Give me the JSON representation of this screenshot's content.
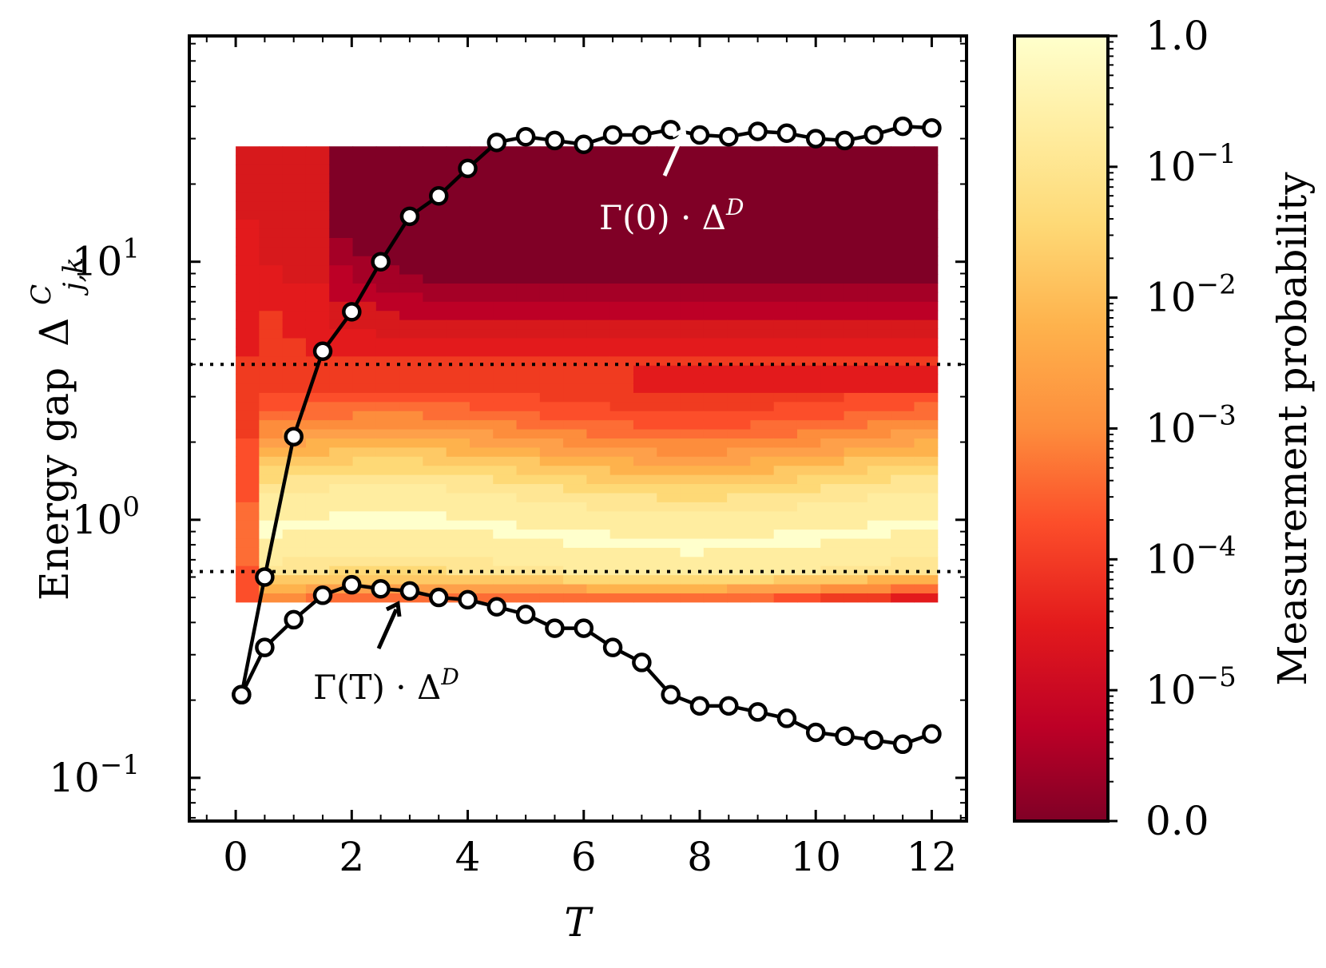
{
  "chart_data": {
    "type": "heatmap",
    "xlabel": "T",
    "ylabel": "Energy gap",
    "ylabel_symbol": "Δ",
    "ylabel_sup": "C",
    "ylabel_sub": "j,k",
    "xlim": [
      -0.8,
      12.6
    ],
    "ylim": [
      0.068,
      75
    ],
    "yscale": "log",
    "xticks": [
      "0",
      "2",
      "4",
      "6",
      "8",
      "10",
      "12"
    ],
    "xtick_values": [
      0,
      2,
      4,
      6,
      8,
      10,
      12
    ],
    "yticks": [
      {
        "value": 0.1,
        "base": "10",
        "exp": "−1"
      },
      {
        "value": 1,
        "base": "10",
        "exp": "0"
      },
      {
        "value": 10,
        "base": "10",
        "exp": "1"
      }
    ],
    "heatmap": {
      "x_range": [
        0,
        12.1
      ],
      "y_range": [
        0.48,
        28
      ],
      "colormap": "YlOrRd_r",
      "description": "Measurement probability of energy gaps versus T"
    },
    "reference_lines": [
      4.0,
      0.63
    ],
    "series": [
      {
        "name": "Γ(0) · Δ^D",
        "x": [
          0.1,
          0.5,
          1,
          1.5,
          2,
          2.5,
          3,
          3.5,
          4,
          4.5,
          5,
          5.5,
          6,
          6.5,
          7,
          7.5,
          8,
          8.5,
          9,
          9.5,
          10,
          10.5,
          11,
          11.5,
          12
        ],
        "values": [
          0.21,
          0.6,
          2.1,
          4.5,
          6.4,
          10.0,
          15.0,
          18.0,
          23.0,
          29.0,
          30.5,
          29.5,
          28.5,
          31.0,
          31.0,
          32.5,
          31.0,
          30.5,
          32.0,
          31.5,
          30.0,
          29.5,
          31.0,
          33.5,
          33.0
        ]
      },
      {
        "name": "Γ(T) · Δ^D",
        "x": [
          0.1,
          0.5,
          1,
          1.5,
          2,
          2.5,
          3,
          3.5,
          4,
          4.5,
          5,
          5.5,
          6,
          6.5,
          7,
          7.5,
          8,
          8.5,
          9,
          9.5,
          10,
          10.5,
          11,
          11.5,
          12
        ],
        "values": [
          0.21,
          0.32,
          0.41,
          0.51,
          0.56,
          0.54,
          0.53,
          0.5,
          0.49,
          0.46,
          0.43,
          0.38,
          0.38,
          0.32,
          0.28,
          0.21,
          0.19,
          0.19,
          0.18,
          0.17,
          0.15,
          0.145,
          0.14,
          0.135,
          0.148
        ]
      }
    ],
    "annotations": [
      {
        "text": "Γ(0) · Δ",
        "sup": "D",
        "target_series": 0
      },
      {
        "text": "Γ(T) · Δ",
        "sup": "D",
        "target_series": 1
      }
    ],
    "colorbar": {
      "label": "Measurement probability",
      "ticks": [
        {
          "text": "1.0",
          "base": "",
          "exp": ""
        },
        {
          "text": "",
          "base": "10",
          "exp": "−1"
        },
        {
          "text": "",
          "base": "10",
          "exp": "−2"
        },
        {
          "text": "",
          "base": "10",
          "exp": "−3"
        },
        {
          "text": "",
          "base": "10",
          "exp": "−4"
        },
        {
          "text": "",
          "base": "10",
          "exp": "−5"
        },
        {
          "text": "0.0",
          "base": "",
          "exp": ""
        }
      ]
    }
  }
}
